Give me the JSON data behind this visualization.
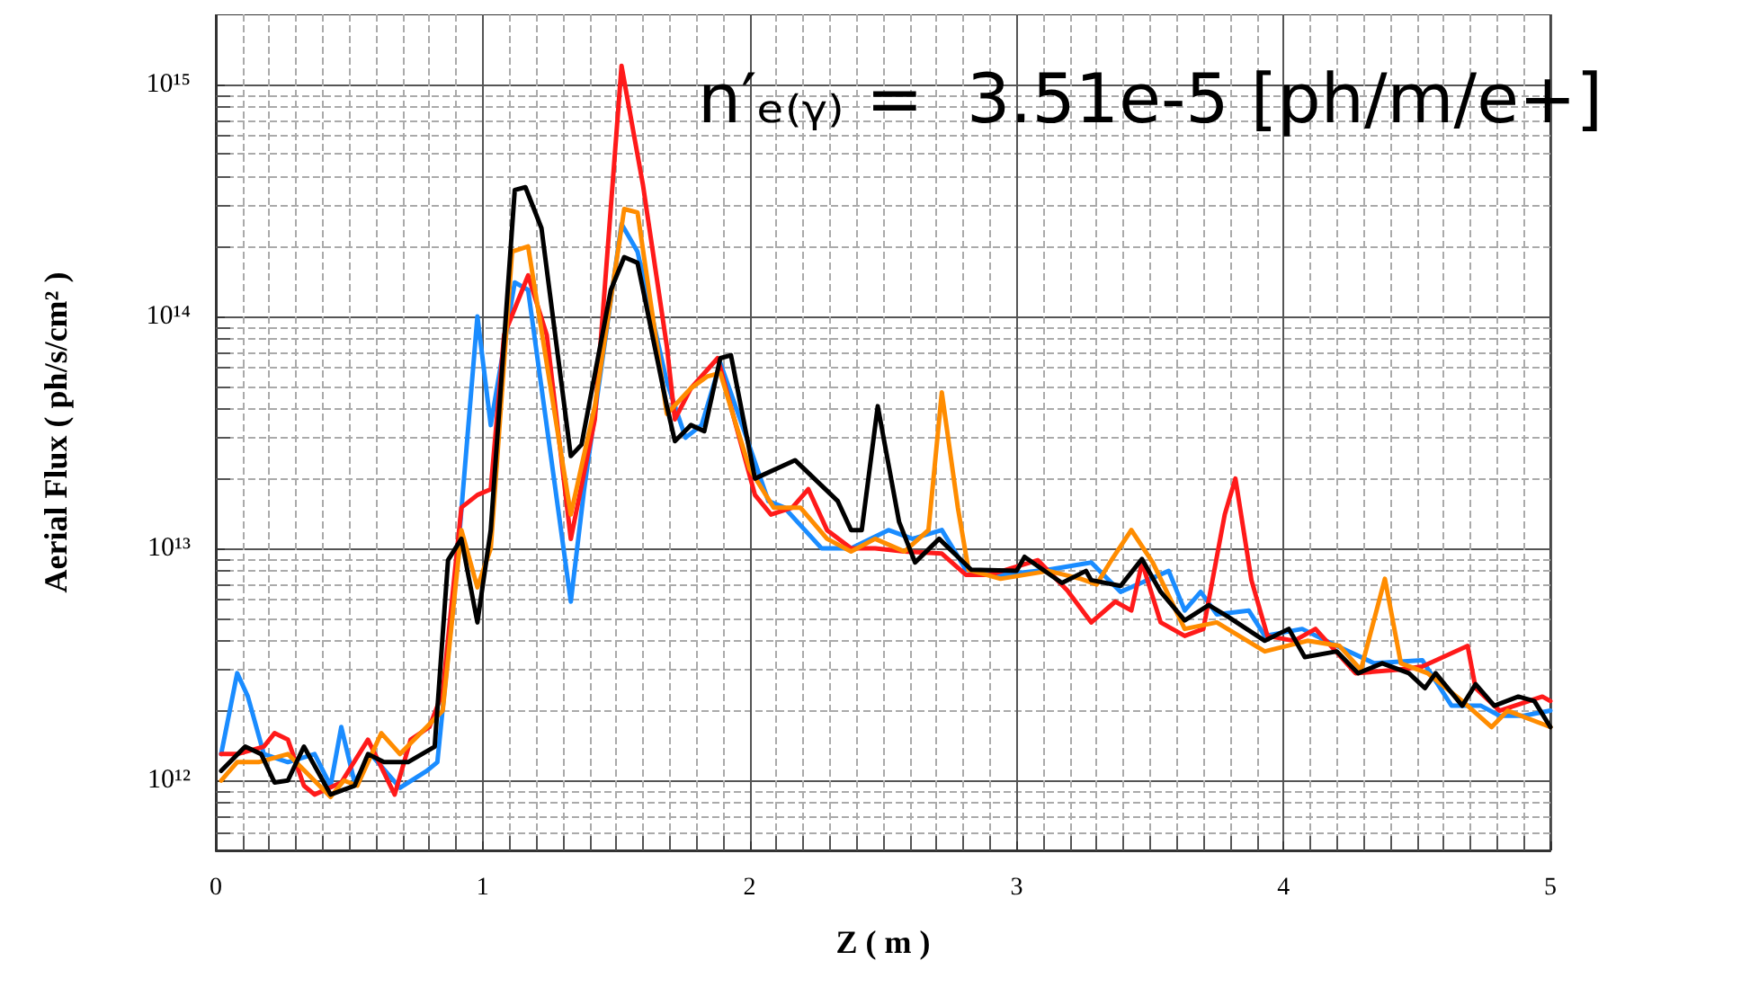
{
  "chart_data": {
    "type": "line",
    "xlabel": "Z ( m )",
    "ylabel": "Aerial Flux ( ph/s/cm² )",
    "annotations": [
      "n′ₑ₍ᵧ₎ =  3.51e-5 [ph/m/e+]"
    ],
    "xlim": [
      0,
      5
    ],
    "xticks": [
      0,
      1,
      2,
      3,
      4,
      5
    ],
    "ylim": [
      500000000000.0,
      2000000000000000.0
    ],
    "log": true,
    "yticks": [
      {
        "value": 1000000000000.0,
        "label": "10¹²"
      },
      {
        "value": 10000000000000.0,
        "label": "10¹³"
      },
      {
        "value": 100000000000000.0,
        "label": "10¹⁴"
      },
      {
        "value": 1000000000000000.0,
        "label": "10¹⁵"
      }
    ],
    "grid": true,
    "marker": "none",
    "line_style": "solid",
    "series": [
      {
        "color": "#1a8cff",
        "x": [
          0.02,
          0.08,
          0.12,
          0.18,
          0.27,
          0.37,
          0.43,
          0.47,
          0.52,
          0.58,
          0.69,
          0.79,
          0.83,
          0.9,
          0.98,
          1.03,
          1.12,
          1.17,
          1.33,
          1.38,
          1.52,
          1.58,
          1.69,
          1.76,
          1.82,
          1.89,
          1.98,
          2.07,
          2.13,
          2.27,
          2.38,
          2.52,
          2.61,
          2.72,
          2.81,
          2.94,
          3.12,
          3.28,
          3.39,
          3.57,
          3.63,
          3.69,
          3.75,
          3.87,
          3.93,
          4.07,
          4.18,
          4.34,
          4.52,
          4.63,
          4.74,
          4.81,
          4.9,
          5.0
        ],
        "values": [
          1300000000000.0,
          2900000000000.0,
          2300000000000.0,
          1300000000000.0,
          1200000000000.0,
          1300000000000.0,
          950000000000.0,
          1700000000000.0,
          980000000000.0,
          1300000000000.0,
          930000000000.0,
          1100000000000.0,
          1200000000000.0,
          7700000000000.0,
          100000000000000.0,
          34000000000000.0,
          140000000000000.0,
          130000000000000.0,
          5900000000000.0,
          18000000000000.0,
          250000000000000.0,
          190000000000000.0,
          52000000000000.0,
          30000000000000.0,
          34000000000000.0,
          63000000000000.0,
          32000000000000.0,
          16000000000000.0,
          15000000000000.0,
          10000000000000.0,
          10000000000000.0,
          12000000000000.0,
          11000000000000.0,
          12000000000000.0,
          8100000000000.0,
          7700000000000.0,
          8100000000000.0,
          8700000000000.0,
          6500000000000.0,
          8000000000000.0,
          5400000000000.0,
          6500000000000.0,
          5200000000000.0,
          5400000000000.0,
          4200000000000.0,
          4500000000000.0,
          3900000000000.0,
          3200000000000.0,
          3300000000000.0,
          2100000000000.0,
          2100000000000.0,
          1900000000000.0,
          1900000000000.0,
          2000000000000.0
        ]
      },
      {
        "color": "#ff1a1a",
        "x": [
          0.02,
          0.08,
          0.18,
          0.22,
          0.27,
          0.33,
          0.37,
          0.47,
          0.57,
          0.67,
          0.73,
          0.8,
          0.85,
          0.92,
          0.98,
          1.03,
          1.08,
          1.17,
          1.24,
          1.33,
          1.42,
          1.52,
          1.6,
          1.69,
          1.72,
          1.78,
          1.88,
          2.02,
          2.08,
          2.16,
          2.22,
          2.29,
          2.38,
          2.47,
          2.58,
          2.72,
          2.81,
          2.9,
          3.08,
          3.19,
          3.28,
          3.37,
          3.43,
          3.47,
          3.54,
          3.63,
          3.7,
          3.78,
          3.82,
          3.88,
          3.94,
          4.04,
          4.12,
          4.27,
          4.43,
          4.52,
          4.69,
          4.72,
          4.81,
          4.97,
          5.0
        ],
        "values": [
          1300000000000.0,
          1300000000000.0,
          1400000000000.0,
          1600000000000.0,
          1500000000000.0,
          950000000000.0,
          870000000000.0,
          980000000000.0,
          1500000000000.0,
          870000000000.0,
          1500000000000.0,
          1700000000000.0,
          2400000000000.0,
          15000000000000.0,
          17000000000000.0,
          18000000000000.0,
          83000000000000.0,
          150000000000000.0,
          83000000000000.0,
          11000000000000.0,
          36000000000000.0,
          1200000000000000.0,
          370000000000000.0,
          74000000000000.0,
          36000000000000.0,
          49000000000000.0,
          66000000000000.0,
          17000000000000.0,
          14000000000000.0,
          15000000000000.0,
          18000000000000.0,
          12000000000000.0,
          10000000000000.0,
          10000000000000.0,
          9700000000000.0,
          9500000000000.0,
          7700000000000.0,
          7700000000000.0,
          8900000000000.0,
          6600000000000.0,
          4800000000000.0,
          5900000000000.0,
          5400000000000.0,
          8700000000000.0,
          4800000000000.0,
          4200000000000.0,
          4500000000000.0,
          14000000000000.0,
          20000000000000.0,
          7300000000000.0,
          4200000000000.0,
          4000000000000.0,
          4500000000000.0,
          2900000000000.0,
          3000000000000.0,
          3100000000000.0,
          3800000000000.0,
          2500000000000.0,
          2000000000000.0,
          2300000000000.0,
          2200000000000.0
        ]
      },
      {
        "color": "#ff8c00",
        "x": [
          0.02,
          0.08,
          0.16,
          0.27,
          0.43,
          0.48,
          0.53,
          0.62,
          0.69,
          0.79,
          0.85,
          0.92,
          0.98,
          1.03,
          1.11,
          1.17,
          1.33,
          1.42,
          1.53,
          1.58,
          1.69,
          1.78,
          1.84,
          1.89,
          2.0,
          2.09,
          2.19,
          2.29,
          2.38,
          2.47,
          2.58,
          2.67,
          2.72,
          2.78,
          2.82,
          2.94,
          3.12,
          3.24,
          3.3,
          3.35,
          3.43,
          3.51,
          3.63,
          3.75,
          3.93,
          4.09,
          4.21,
          4.29,
          4.38,
          4.44,
          4.54,
          4.67,
          4.78,
          4.84,
          5.0
        ],
        "values": [
          1000000000000.0,
          1200000000000.0,
          1200000000000.0,
          1300000000000.0,
          850000000000.0,
          1000000000000.0,
          950000000000.0,
          1600000000000.0,
          1300000000000.0,
          1700000000000.0,
          2000000000000.0,
          12000000000000.0,
          6800000000000.0,
          10000000000000.0,
          190000000000000.0,
          200000000000000.0,
          14000000000000.0,
          41000000000000.0,
          290000000000000.0,
          280000000000000.0,
          38000000000000.0,
          49000000000000.0,
          55000000000000.0,
          57000000000000.0,
          22000000000000.0,
          15000000000000.0,
          15000000000000.0,
          11000000000000.0,
          9700000000000.0,
          11000000000000.0,
          9700000000000.0,
          12000000000000.0,
          47000000000000.0,
          15000000000000.0,
          8100000000000.0,
          7400000000000.0,
          8000000000000.0,
          7400000000000.0,
          7000000000000.0,
          8700000000000.0,
          12000000000000.0,
          8700000000000.0,
          4500000000000.0,
          4800000000000.0,
          3600000000000.0,
          4000000000000.0,
          3800000000000.0,
          3000000000000.0,
          7400000000000.0,
          3200000000000.0,
          2900000000000.0,
          2200000000000.0,
          1700000000000.0,
          2000000000000.0,
          1700000000000.0
        ]
      },
      {
        "color": "#000000",
        "x": [
          0.02,
          0.11,
          0.17,
          0.22,
          0.27,
          0.33,
          0.43,
          0.52,
          0.57,
          0.63,
          0.72,
          0.82,
          0.87,
          0.92,
          0.98,
          1.03,
          1.12,
          1.16,
          1.22,
          1.33,
          1.37,
          1.48,
          1.53,
          1.58,
          1.69,
          1.72,
          1.78,
          1.83,
          1.89,
          1.93,
          2.02,
          2.17,
          2.33,
          2.38,
          2.42,
          2.48,
          2.56,
          2.62,
          2.71,
          2.83,
          3.0,
          3.03,
          3.17,
          3.26,
          3.28,
          3.39,
          3.47,
          3.54,
          3.63,
          3.72,
          3.79,
          3.93,
          4.02,
          4.08,
          4.2,
          4.28,
          4.37,
          4.47,
          4.53,
          4.57,
          4.67,
          4.72,
          4.79,
          4.88,
          4.94,
          5.0
        ],
        "values": [
          1100000000000.0,
          1400000000000.0,
          1300000000000.0,
          980000000000.0,
          1000000000000.0,
          1400000000000.0,
          870000000000.0,
          950000000000.0,
          1300000000000.0,
          1200000000000.0,
          1200000000000.0,
          1400000000000.0,
          8900000000000.0,
          11000000000000.0,
          4800000000000.0,
          12000000000000.0,
          350000000000000.0,
          360000000000000.0,
          240000000000000.0,
          25000000000000.0,
          28000000000000.0,
          130000000000000.0,
          180000000000000.0,
          170000000000000.0,
          41000000000000.0,
          29000000000000.0,
          34000000000000.0,
          32000000000000.0,
          66000000000000.0,
          68000000000000.0,
          20000000000000.0,
          24000000000000.0,
          16000000000000.0,
          12000000000000.0,
          12000000000000.0,
          41000000000000.0,
          13000000000000.0,
          8700000000000.0,
          11000000000000.0,
          8100000000000.0,
          8000000000000.0,
          9200000000000.0,
          7100000000000.0,
          8000000000000.0,
          7300000000000.0,
          6900000000000.0,
          9000000000000.0,
          6500000000000.0,
          4900000000000.0,
          5700000000000.0,
          5100000000000.0,
          4000000000000.0,
          4500000000000.0,
          3400000000000.0,
          3600000000000.0,
          2900000000000.0,
          3200000000000.0,
          2900000000000.0,
          2500000000000.0,
          2900000000000.0,
          2100000000000.0,
          2600000000000.0,
          2100000000000.0,
          2300000000000.0,
          2200000000000.0,
          1700000000000.0
        ]
      }
    ]
  }
}
